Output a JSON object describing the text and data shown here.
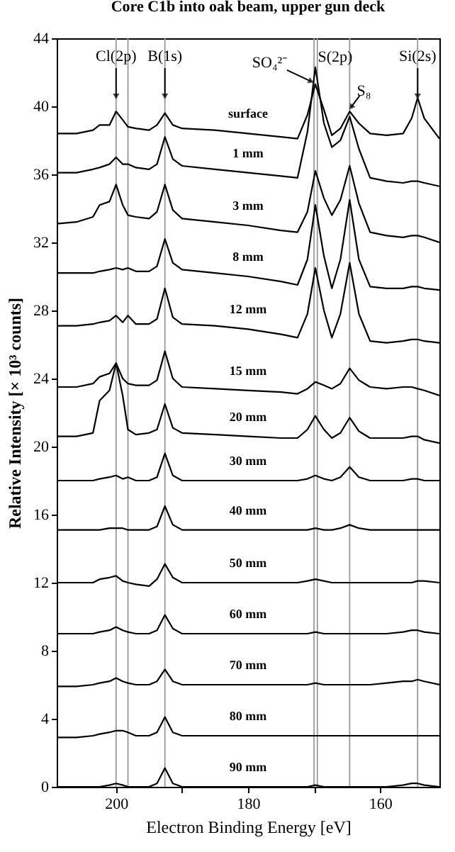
{
  "chart_data": {
    "type": "line",
    "title": "Core C1b into oak beam, upper gun deck",
    "xlabel": "Electron Binding Energy [eV]",
    "ylabel": "Relative Intensity [× 10³ counts]",
    "xlim": [
      209,
      151
    ],
    "xticks": [
      200,
      {
        "value": 190,
        "label": null
      },
      180,
      {
        "value": 170,
        "label": null
      },
      160
    ],
    "ylim": [
      0,
      44
    ],
    "yticks": [
      0,
      4,
      8,
      12,
      16,
      20,
      24,
      28,
      32,
      36,
      40,
      44
    ],
    "grid": false,
    "legend": false,
    "marker": "none",
    "line_style": "solid",
    "x": [
      209,
      206,
      203.5,
      202.5,
      201,
      200,
      199,
      198.2,
      197,
      195,
      193.8,
      192.6,
      191.4,
      190,
      185,
      180,
      175,
      172.5,
      171,
      169.8,
      168.5,
      167.3,
      166,
      164.6,
      163.2,
      161.5,
      159,
      156.5,
      155.2,
      154.3,
      153.3,
      151
    ],
    "series": [
      {
        "name": "surface",
        "color": "#000000",
        "values": [
          38.4,
          38.4,
          38.6,
          38.9,
          38.9,
          39.7,
          39.2,
          38.8,
          38.7,
          38.6,
          38.9,
          39.6,
          38.9,
          38.7,
          38.6,
          38.4,
          38.2,
          38.1,
          39.5,
          41.3,
          39.8,
          38.3,
          38.7,
          39.7,
          39.0,
          38.4,
          38.3,
          38.4,
          39.3,
          40.5,
          39.3,
          38.1
        ]
      },
      {
        "name": "1 mm",
        "color": "#000000",
        "values": [
          36.1,
          36.1,
          36.3,
          36.4,
          36.6,
          37.0,
          36.6,
          36.6,
          36.4,
          36.3,
          36.6,
          38.2,
          36.9,
          36.5,
          36.3,
          36.1,
          35.9,
          35.8,
          38.5,
          42.3,
          39.0,
          37.6,
          38.0,
          39.4,
          37.5,
          35.8,
          35.6,
          35.5,
          35.6,
          35.6,
          35.5,
          35.3
        ]
      },
      {
        "name": "3 mm",
        "color": "#000000",
        "values": [
          33.1,
          33.2,
          33.5,
          34.2,
          34.4,
          35.4,
          34.2,
          33.6,
          33.5,
          33.4,
          33.8,
          35.4,
          33.9,
          33.4,
          33.2,
          33.0,
          32.7,
          32.6,
          33.8,
          36.2,
          34.6,
          33.6,
          34.5,
          36.5,
          34.3,
          32.6,
          32.4,
          32.3,
          32.4,
          32.4,
          32.3,
          32.0
        ]
      },
      {
        "name": "8 mm",
        "color": "#000000",
        "values": [
          30.2,
          30.2,
          30.2,
          30.3,
          30.4,
          30.5,
          30.4,
          30.5,
          30.3,
          30.3,
          30.6,
          32.2,
          30.8,
          30.4,
          30.2,
          30.0,
          29.7,
          29.5,
          31.0,
          34.2,
          31.2,
          29.3,
          31.0,
          34.5,
          31.0,
          29.4,
          29.3,
          29.3,
          29.4,
          29.4,
          29.3,
          29.2
        ]
      },
      {
        "name": "12 mm",
        "color": "#000000",
        "values": [
          27.1,
          27.1,
          27.2,
          27.3,
          27.4,
          27.7,
          27.3,
          27.7,
          27.2,
          27.2,
          27.5,
          29.3,
          27.6,
          27.2,
          27.1,
          26.9,
          26.6,
          26.4,
          27.8,
          30.5,
          28.0,
          26.4,
          27.8,
          30.8,
          27.8,
          26.2,
          26.1,
          26.2,
          26.3,
          26.3,
          26.2,
          26.1
        ]
      },
      {
        "name": "15 mm",
        "color": "#000000",
        "values": [
          23.5,
          23.5,
          23.7,
          24.1,
          24.3,
          24.9,
          24.0,
          23.7,
          23.6,
          23.6,
          23.9,
          25.6,
          24.0,
          23.5,
          23.4,
          23.3,
          23.2,
          23.1,
          23.4,
          23.8,
          23.6,
          23.4,
          23.7,
          24.6,
          23.9,
          23.5,
          23.4,
          23.5,
          23.5,
          23.4,
          23.3,
          23.0
        ]
      },
      {
        "name": "20 mm",
        "color": "#000000",
        "values": [
          20.6,
          20.6,
          20.8,
          22.7,
          23.3,
          24.9,
          23.0,
          21.0,
          20.7,
          20.8,
          21.0,
          22.5,
          21.1,
          20.8,
          20.7,
          20.6,
          20.5,
          20.5,
          21.0,
          21.8,
          21.0,
          20.5,
          20.8,
          21.7,
          20.9,
          20.5,
          20.5,
          20.5,
          20.6,
          20.6,
          20.4,
          20.2
        ]
      },
      {
        "name": "30 mm",
        "color": "#000000",
        "values": [
          18.0,
          18.0,
          18.0,
          18.1,
          18.2,
          18.3,
          18.1,
          18.2,
          18.0,
          18.0,
          18.2,
          19.6,
          18.3,
          18.0,
          18.0,
          18.0,
          18.0,
          18.0,
          18.1,
          18.3,
          18.1,
          18.0,
          18.2,
          18.8,
          18.2,
          18.0,
          18.0,
          18.0,
          18.1,
          18.1,
          18.0,
          18.0
        ]
      },
      {
        "name": "40 mm",
        "color": "#000000",
        "values": [
          15.1,
          15.1,
          15.1,
          15.1,
          15.2,
          15.2,
          15.2,
          15.1,
          15.1,
          15.1,
          15.3,
          16.5,
          15.4,
          15.1,
          15.1,
          15.1,
          15.1,
          15.1,
          15.1,
          15.2,
          15.1,
          15.1,
          15.2,
          15.4,
          15.2,
          15.1,
          15.1,
          15.1,
          15.1,
          15.1,
          15.1,
          15.1
        ]
      },
      {
        "name": "50 mm",
        "color": "#000000",
        "values": [
          12.0,
          12.0,
          12.0,
          12.2,
          12.3,
          12.4,
          12.1,
          12.0,
          11.9,
          11.8,
          12.2,
          13.1,
          12.3,
          12.0,
          12.0,
          12.0,
          12.0,
          12.0,
          12.1,
          12.2,
          12.1,
          12.0,
          12.0,
          12.0,
          12.0,
          12.0,
          12.0,
          12.0,
          12.0,
          12.1,
          12.1,
          12.0
        ]
      },
      {
        "name": "60 mm",
        "color": "#000000",
        "values": [
          9.0,
          9.0,
          9.0,
          9.1,
          9.2,
          9.4,
          9.2,
          9.1,
          9.0,
          9.0,
          9.2,
          10.1,
          9.3,
          9.0,
          9.0,
          9.0,
          9.0,
          9.0,
          9.0,
          9.1,
          9.0,
          9.0,
          9.0,
          9.0,
          9.0,
          9.0,
          9.0,
          9.1,
          9.2,
          9.2,
          9.1,
          9.0
        ]
      },
      {
        "name": "70 mm",
        "color": "#000000",
        "values": [
          5.9,
          5.9,
          6.0,
          6.1,
          6.2,
          6.4,
          6.2,
          6.1,
          6.0,
          6.0,
          6.2,
          6.9,
          6.2,
          6.0,
          6.0,
          6.0,
          6.0,
          6.0,
          6.0,
          6.1,
          6.0,
          6.0,
          6.0,
          6.0,
          6.0,
          6.0,
          6.1,
          6.2,
          6.2,
          6.3,
          6.2,
          6.0
        ]
      },
      {
        "name": "80 mm",
        "color": "#000000",
        "values": [
          2.9,
          2.9,
          3.0,
          3.1,
          3.2,
          3.3,
          3.3,
          3.2,
          3.0,
          3.0,
          3.2,
          4.1,
          3.2,
          3.0,
          3.0,
          3.0,
          3.0,
          3.0,
          3.0,
          3.0,
          3.0,
          3.0,
          3.0,
          3.0,
          3.0,
          3.0,
          3.0,
          3.0,
          3.0,
          3.0,
          3.0,
          3.0
        ]
      },
      {
        "name": "90 mm",
        "color": "#000000",
        "values": [
          0.0,
          0.0,
          0.0,
          0.0,
          0.1,
          0.2,
          0.1,
          0.0,
          0.0,
          0.0,
          0.2,
          1.1,
          0.2,
          0.0,
          0.0,
          0.0,
          0.0,
          0.0,
          0.0,
          0.1,
          0.0,
          0.0,
          0.0,
          0.0,
          0.0,
          0.0,
          0.0,
          0.1,
          0.2,
          0.2,
          0.1,
          0.0
        ]
      }
    ],
    "ref_lines": [
      {
        "axis": "x",
        "value": 200,
        "color": "#999999"
      },
      {
        "axis": "x",
        "value": 198.2,
        "color": "#999999"
      },
      {
        "axis": "x",
        "value": 192.6,
        "color": "#999999"
      },
      {
        "axis": "x",
        "value": 170,
        "color": "#999999"
      },
      {
        "axis": "x",
        "value": 169.5,
        "color": "#999999"
      },
      {
        "axis": "x",
        "value": 164.6,
        "color": "#999999"
      },
      {
        "axis": "x",
        "value": 154.3,
        "color": "#999999"
      }
    ],
    "annotations": [
      {
        "text": "Cl(2p)",
        "x": 200,
        "y": 42.5
      },
      {
        "text": "B(1s)",
        "x": 192.6,
        "y": 42.5
      },
      {
        "text": "S(2p)",
        "x": 169.8,
        "y": 42.3
      },
      {
        "text": "Si(2s)",
        "x": 154.3,
        "y": 42.5
      },
      {
        "text": "SO₄²⁻",
        "x": 169.8,
        "y": 41.3
      },
      {
        "text": "S₈",
        "x": 164.6,
        "y": 39.7
      }
    ]
  }
}
